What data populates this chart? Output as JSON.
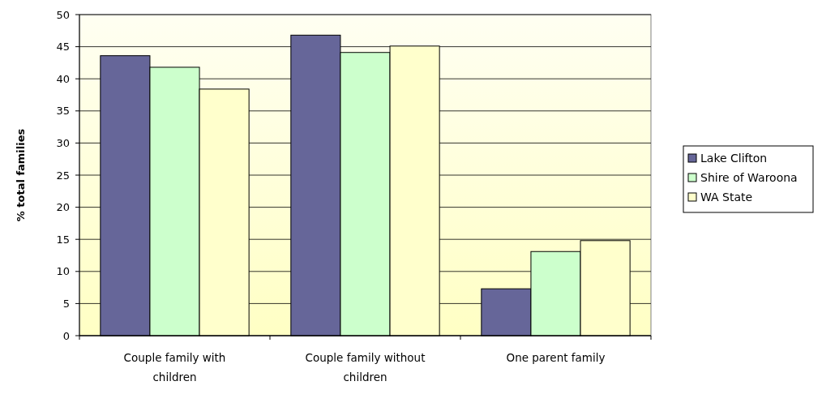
{
  "chart_data": {
    "type": "bar",
    "ylabel": "% total families",
    "categories": [
      "Couple family with children",
      "Couple family without children",
      "One parent family"
    ],
    "series": [
      {
        "name": "Lake Clifton",
        "color": "#666699",
        "values": [
          43.6,
          46.8,
          7.3
        ]
      },
      {
        "name": "Shire of Waroona",
        "color": "#ccffcc",
        "values": [
          41.8,
          44.1,
          13.1
        ]
      },
      {
        "name": "WA State",
        "color": "#ffffcc",
        "values": [
          38.4,
          45.1,
          14.8
        ]
      }
    ],
    "ylim": [
      0,
      50
    ],
    "yticks": [
      0,
      5,
      10,
      15,
      20,
      25,
      30,
      35,
      40,
      45,
      50
    ],
    "grid": "y",
    "legend": "right"
  }
}
